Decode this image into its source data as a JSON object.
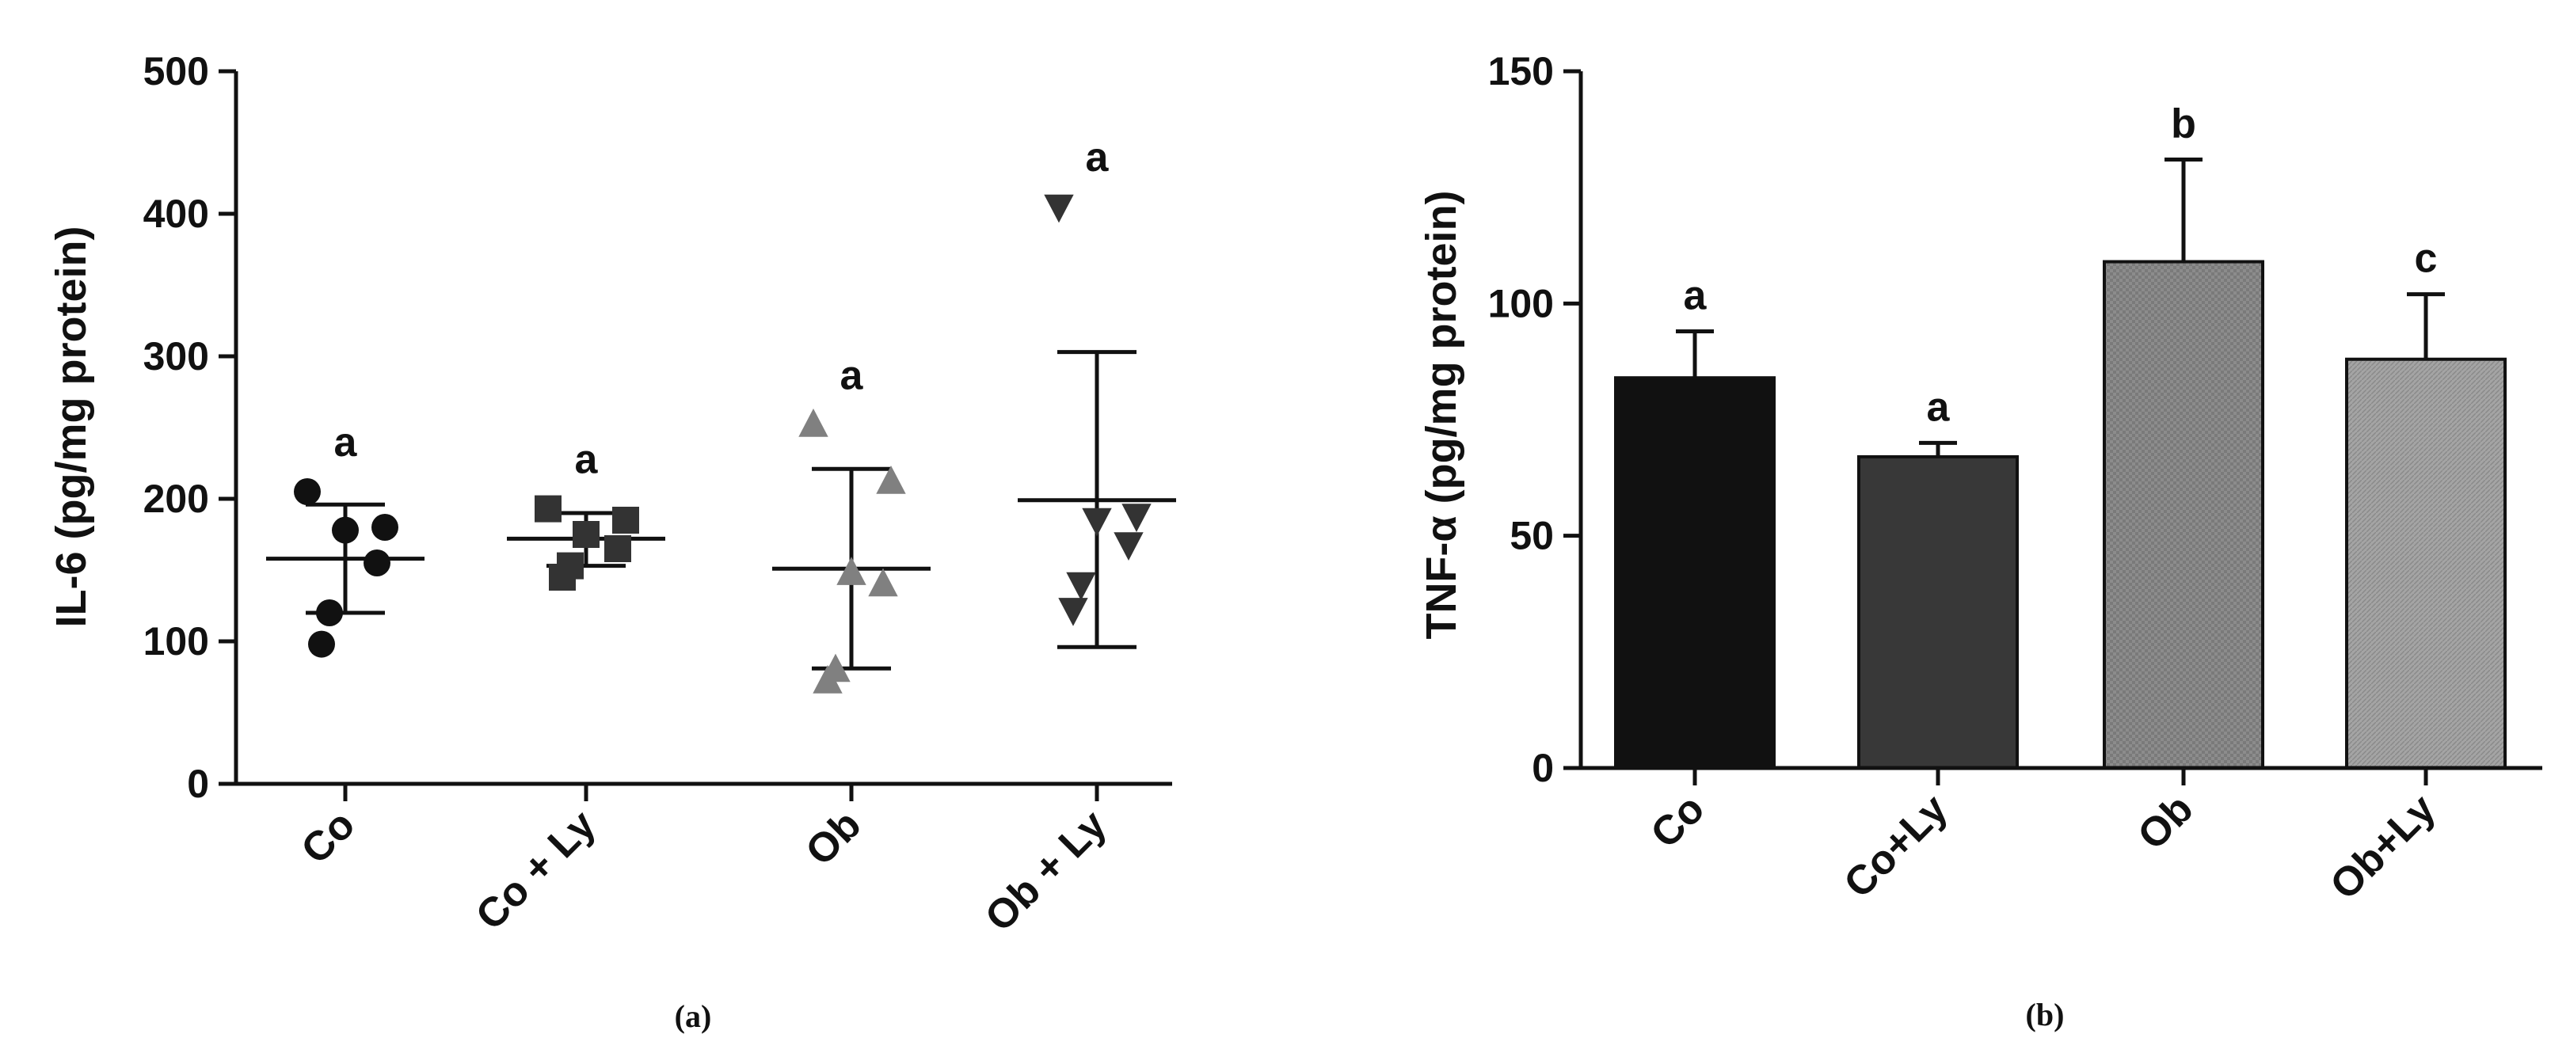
{
  "chart_data": [
    {
      "panel_label": "(a)",
      "type": "scatter",
      "ylabel": "IL-6 (pg/mg protein)",
      "xlabel": "",
      "ylim": [
        0,
        500
      ],
      "yticks": [
        "0",
        "100",
        "200",
        "300",
        "400",
        "500"
      ],
      "grid": false,
      "categories": [
        "Co",
        "Co + Ly",
        "Ob",
        "Ob + Ly"
      ],
      "groups": [
        {
          "category": "Co",
          "marker": "circle",
          "color": "#111111",
          "points": [
            205,
            180,
            178,
            155,
            120,
            98
          ],
          "mean": 158,
          "error_low": 120,
          "error_high": 196,
          "significance": "a"
        },
        {
          "category": "Co + Ly",
          "marker": "square",
          "color": "#333333",
          "points": [
            193,
            185,
            175,
            165,
            153,
            145
          ],
          "mean": 172,
          "error_low": 153,
          "error_high": 190,
          "significance": "a"
        },
        {
          "category": "Ob",
          "marker": "triangle-up",
          "color": "#808080",
          "points": [
            252,
            212,
            148,
            140,
            80,
            72
          ],
          "mean": 151,
          "error_low": 81,
          "error_high": 221,
          "significance": "a"
        },
        {
          "category": "Ob + Ly",
          "marker": "triangle-down",
          "color": "#333333",
          "points": [
            405,
            188,
            185,
            168,
            140,
            122
          ],
          "mean": 199,
          "error_low": 96,
          "error_high": 303,
          "significance": "a"
        }
      ]
    },
    {
      "panel_label": "(b)",
      "type": "bar",
      "ylabel": "TNF-α (pg/mg protein)",
      "xlabel": "",
      "ylim": [
        0,
        150
      ],
      "yticks": [
        "0",
        "50",
        "100",
        "150"
      ],
      "grid": false,
      "categories": [
        "Co",
        "Co+Ly",
        "Ob",
        "Ob+Ly"
      ],
      "values": [
        84,
        67,
        109,
        88
      ],
      "errors": [
        10,
        3,
        22,
        14
      ],
      "colors": [
        "#111111",
        "#383838",
        "#8c8c8c",
        "#9e9e9e"
      ],
      "significance": [
        "a",
        "a",
        "b",
        "c"
      ]
    }
  ]
}
